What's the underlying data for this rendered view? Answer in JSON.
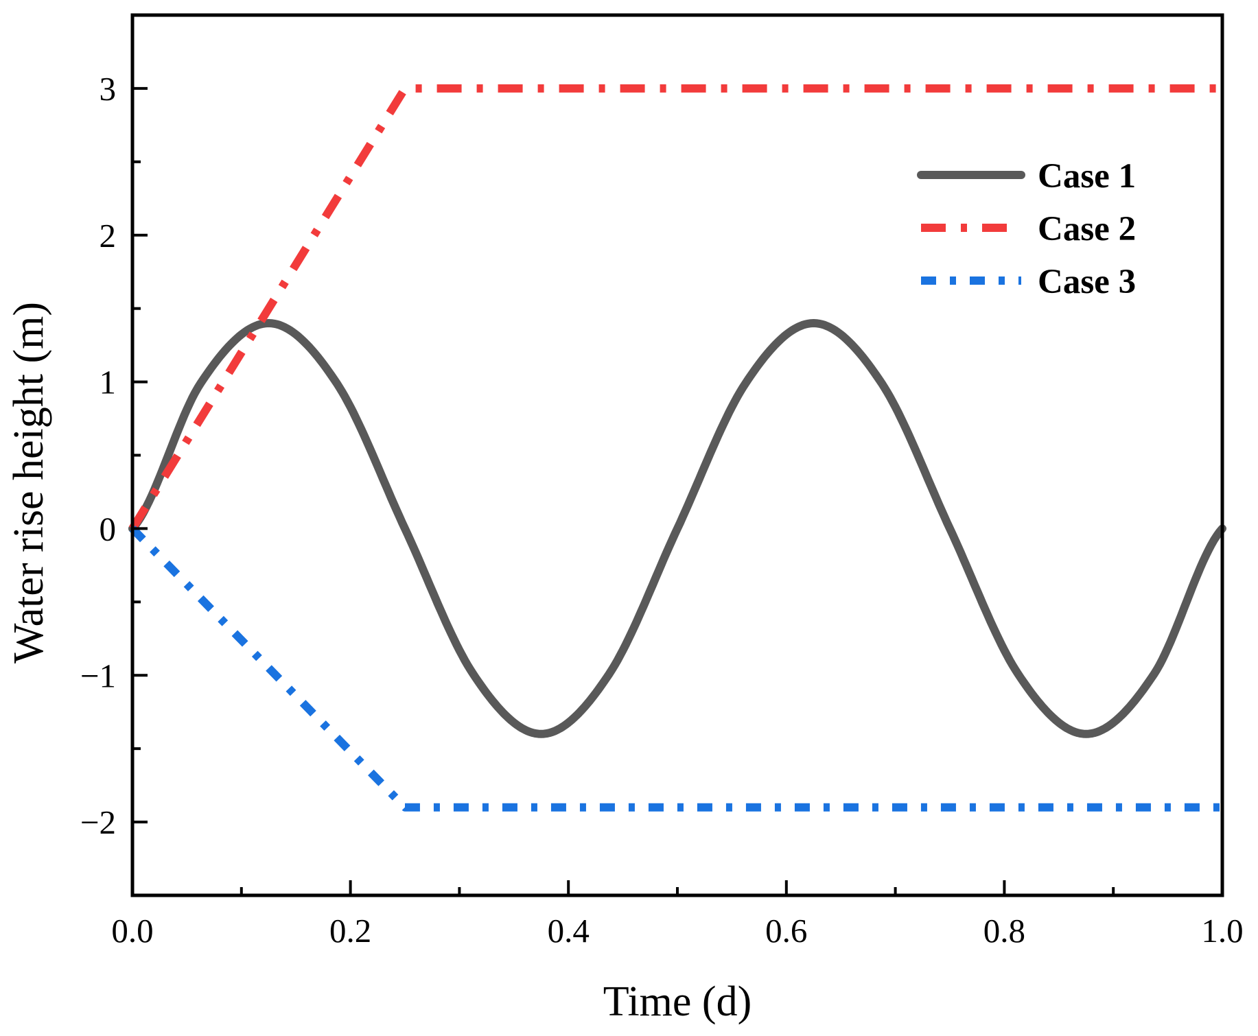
{
  "chart_data": {
    "type": "line",
    "title": "",
    "xlabel": "Time  (d)",
    "ylabel": "Water rise height  (m)",
    "xlim": [
      0,
      1
    ],
    "ylim": [
      -2.5,
      3.5
    ],
    "x_ticks": [
      0.0,
      0.2,
      0.4,
      0.6,
      0.8,
      1.0
    ],
    "x_tick_labels": [
      "0.0",
      "0.2",
      "0.4",
      "0.6",
      "0.8",
      "1.0"
    ],
    "y_ticks": [
      -2,
      -1,
      0,
      1,
      2,
      3
    ],
    "y_tick_labels": [
      "−2",
      "−1",
      "0",
      "1",
      "2",
      "3"
    ],
    "grid": false,
    "legend_position": "top-right",
    "series": [
      {
        "name": "Case 1",
        "style": "solid",
        "color": "#595959",
        "x": [
          0,
          0.0625,
          0.125,
          0.1875,
          0.25,
          0.3125,
          0.375,
          0.4375,
          0.5,
          0.5625,
          0.625,
          0.6875,
          0.75,
          0.8125,
          0.875,
          0.9375,
          1.0
        ],
        "y": [
          0,
          0.99,
          1.4,
          0.99,
          0,
          -0.99,
          -1.4,
          -0.99,
          0,
          0.99,
          1.4,
          0.99,
          0,
          -0.99,
          -1.4,
          -0.99,
          0
        ]
      },
      {
        "name": "Case 2",
        "style": "dash-dot",
        "color": "#f23b3b",
        "x": [
          0,
          0.25,
          1.0
        ],
        "y": [
          0,
          3,
          3
        ]
      },
      {
        "name": "Case 3",
        "style": "dash-dot-short",
        "color": "#1a73e0",
        "x": [
          0,
          0.25,
          1.0
        ],
        "y": [
          0,
          -1.9,
          -1.9
        ]
      }
    ]
  }
}
